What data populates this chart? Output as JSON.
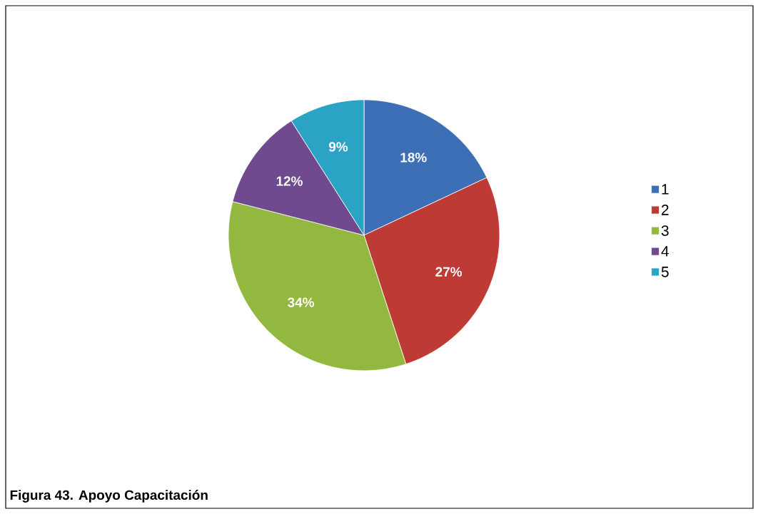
{
  "chart_data": {
    "type": "pie",
    "categories": [
      "1",
      "2",
      "3",
      "4",
      "5"
    ],
    "values": [
      18,
      27,
      34,
      12,
      9
    ],
    "colors": [
      "#3c6fb6",
      "#be3a34",
      "#93b83f",
      "#6f4a8e",
      "#2aa3c5"
    ],
    "value_labels": [
      "18%",
      "27%",
      "34%",
      "12%",
      "9%"
    ],
    "legend": "right",
    "annotations": [
      "**Figura 43.  Apoyo Capacitación**"
    ]
  }
}
